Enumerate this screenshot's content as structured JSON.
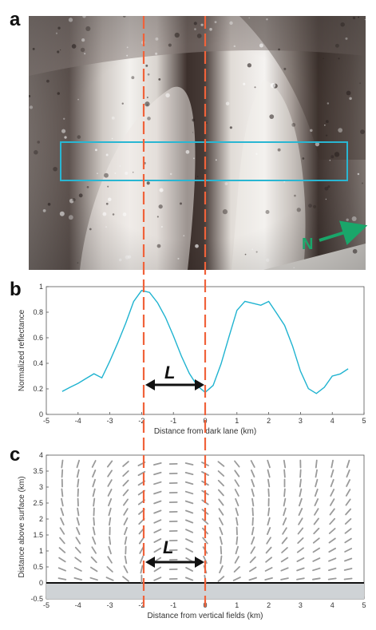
{
  "panel_labels": [
    "a",
    "b",
    "c"
  ],
  "image_annotation": {
    "compass_label": "N",
    "box_color": "#29b6d2",
    "arrow_color": "#1aa66a"
  },
  "colors": {
    "guide_lines": "#f0623a",
    "profile": "#1fb3d0",
    "field_vectors": "#9a9a9a",
    "below_surface": "#cfd3d6"
  },
  "separation_label": "L",
  "chart_data": [
    {
      "panel": "b",
      "type": "line",
      "xlabel": "Distance from dark lane (km)",
      "ylabel": "Normalized reflectance",
      "xlim": [
        -5,
        5
      ],
      "ylim": [
        0,
        1
      ],
      "xticks": [
        "-5",
        "-4",
        "-3",
        "-2",
        "-1",
        "0",
        "1",
        "2",
        "3",
        "4",
        "5"
      ],
      "yticks": [
        "0",
        "0.2",
        "0.4",
        "0.6",
        "0.8",
        "1"
      ],
      "vertical_lines": [
        -1.95,
        0
      ],
      "series": [
        {
          "x": [
            -4.5,
            -4.25,
            -4.0,
            -3.75,
            -3.5,
            -3.25,
            -3.0,
            -2.75,
            -2.5,
            -2.25,
            -2.0,
            -1.75,
            -1.5,
            -1.25,
            -1.0,
            -0.75,
            -0.5,
            -0.25,
            0.0,
            0.25,
            0.5,
            0.75,
            1.0,
            1.25,
            1.5,
            1.75,
            2.0,
            2.25,
            2.5,
            2.75,
            3.0,
            3.25,
            3.5,
            3.75,
            4.0,
            4.25,
            4.5
          ],
          "y": [
            0.18,
            0.2,
            0.23,
            0.28,
            0.33,
            0.3,
            0.42,
            0.55,
            0.7,
            0.88,
            0.98,
            0.97,
            0.88,
            0.75,
            0.6,
            0.45,
            0.33,
            0.24,
            0.18,
            0.22,
            0.38,
            0.6,
            0.82,
            0.9,
            0.88,
            0.85,
            0.87,
            0.78,
            0.7,
            0.55,
            0.35,
            0.2,
            0.15,
            0.2,
            0.3,
            0.33,
            0.37
          ]
        }
      ]
    },
    {
      "panel": "c",
      "type": "quiver",
      "xlabel": "Distance from vertical fields (km)",
      "ylabel": "Distance above surface (km)",
      "xlim": [
        -5,
        5
      ],
      "ylim": [
        -0.5,
        4
      ],
      "xticks": [
        "-5",
        "-4",
        "-3",
        "-2",
        "-1",
        "0",
        "1",
        "2",
        "3",
        "4",
        "5"
      ],
      "yticks": [
        "-0.5",
        "0",
        "0.5",
        "1",
        "1.5",
        "2",
        "2.5",
        "3",
        "3.5",
        "4"
      ],
      "vertical_lines": [
        -1.95,
        0
      ],
      "surface_level": 0,
      "source_columns_km": [
        -1.95,
        0
      ]
    }
  ]
}
